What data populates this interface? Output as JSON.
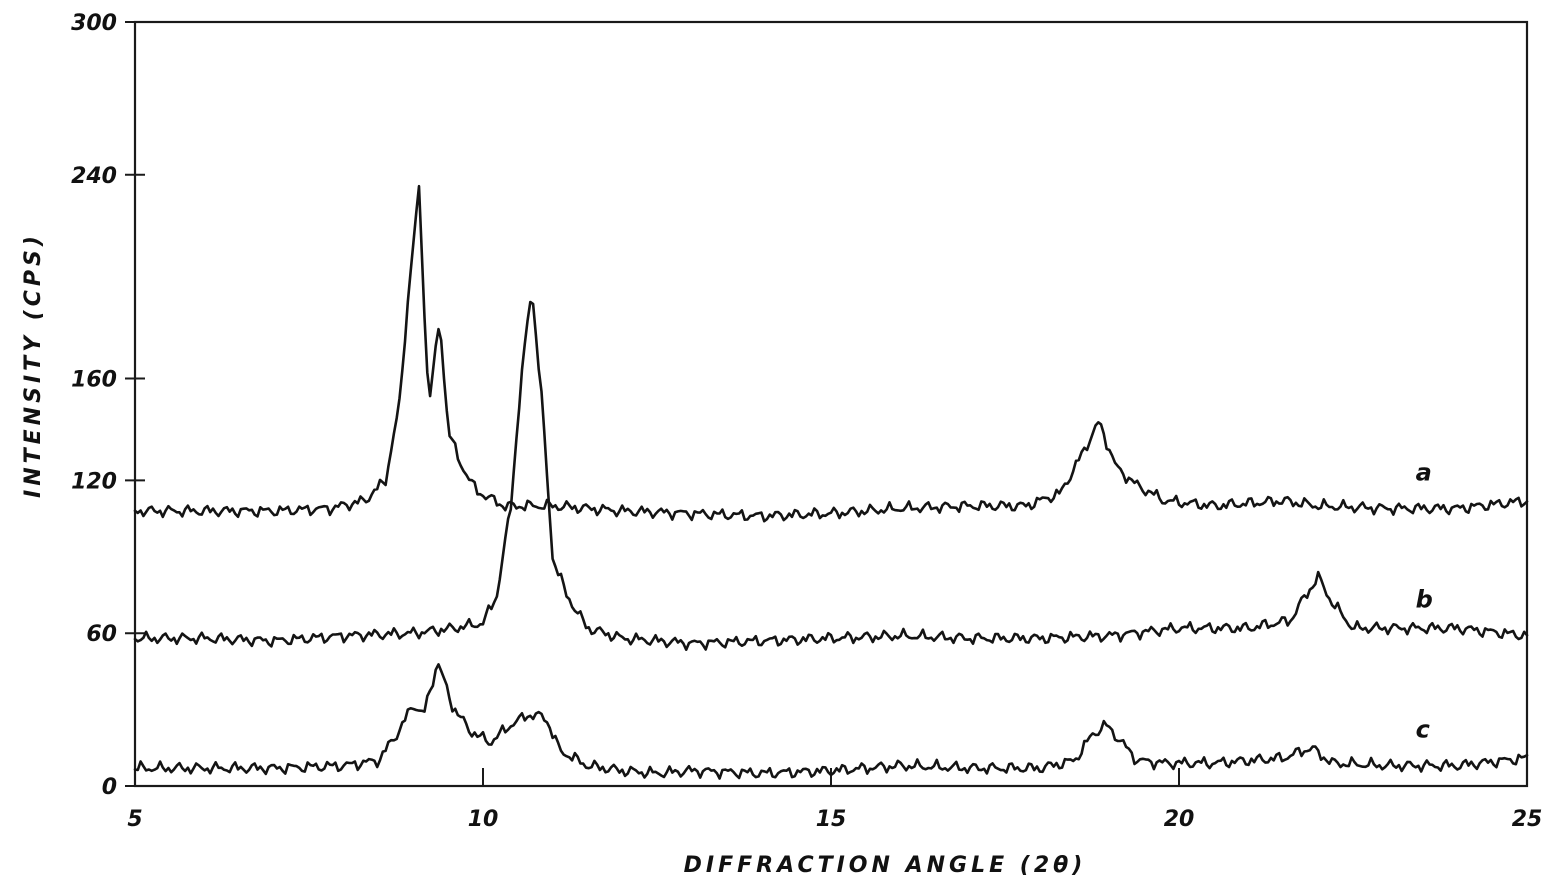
{
  "chart_data": {
    "type": "line",
    "title": "",
    "xlabel": "DIFFRACTION ANGLE (2θ)",
    "ylabel": "INTENSITY (CPS)",
    "xlim": [
      5,
      25
    ],
    "ylim": [
      0,
      300
    ],
    "x_ticks": [
      5,
      10,
      15,
      20,
      25
    ],
    "y_ticks": [
      0,
      60,
      120,
      160,
      240,
      300
    ],
    "grid": false,
    "legend": "none",
    "series": [
      {
        "name": "a",
        "baseline": 108,
        "peaks": [
          {
            "x": 9.08,
            "y": 234
          },
          {
            "x": 9.38,
            "y": 183
          },
          {
            "x": 18.85,
            "y": 143
          }
        ],
        "points": [
          [
            5.0,
            108
          ],
          [
            6.0,
            108
          ],
          [
            7.0,
            108
          ],
          [
            7.8,
            109
          ],
          [
            8.3,
            112
          ],
          [
            8.6,
            120
          ],
          [
            8.8,
            150
          ],
          [
            8.95,
            200
          ],
          [
            9.08,
            234
          ],
          [
            9.22,
            150
          ],
          [
            9.38,
            183
          ],
          [
            9.5,
            140
          ],
          [
            9.65,
            128
          ],
          [
            9.9,
            116
          ],
          [
            10.3,
            110
          ],
          [
            11.0,
            110
          ],
          [
            12.0,
            108
          ],
          [
            13.0,
            107
          ],
          [
            14.0,
            106
          ],
          [
            15.0,
            107
          ],
          [
            16.0,
            109
          ],
          [
            17.0,
            110
          ],
          [
            17.8,
            110
          ],
          [
            18.3,
            115
          ],
          [
            18.6,
            130
          ],
          [
            18.85,
            143
          ],
          [
            19.1,
            125
          ],
          [
            19.4,
            118
          ],
          [
            19.8,
            112
          ],
          [
            20.5,
            110
          ],
          [
            21.5,
            112
          ],
          [
            22.0,
            110
          ],
          [
            23.0,
            109
          ],
          [
            24.0,
            109
          ],
          [
            25.0,
            112
          ]
        ]
      },
      {
        "name": "b",
        "baseline": 58,
        "peaks": [
          {
            "x": 10.7,
            "y": 196
          },
          {
            "x": 22.0,
            "y": 82
          }
        ],
        "points": [
          [
            5.0,
            58
          ],
          [
            6.0,
            58
          ],
          [
            7.0,
            57
          ],
          [
            8.0,
            59
          ],
          [
            9.0,
            60
          ],
          [
            9.6,
            62
          ],
          [
            10.0,
            64
          ],
          [
            10.2,
            75
          ],
          [
            10.4,
            110
          ],
          [
            10.55,
            160
          ],
          [
            10.7,
            196
          ],
          [
            10.85,
            150
          ],
          [
            11.0,
            90
          ],
          [
            11.2,
            75
          ],
          [
            11.5,
            62
          ],
          [
            12.0,
            58
          ],
          [
            13.0,
            56
          ],
          [
            14.0,
            57
          ],
          [
            15.0,
            58
          ],
          [
            16.0,
            59
          ],
          [
            17.0,
            58
          ],
          [
            18.0,
            58
          ],
          [
            19.0,
            59
          ],
          [
            20.0,
            62
          ],
          [
            21.0,
            62
          ],
          [
            21.6,
            65
          ],
          [
            21.8,
            74
          ],
          [
            22.0,
            82
          ],
          [
            22.2,
            72
          ],
          [
            22.5,
            62
          ],
          [
            23.0,
            62
          ],
          [
            24.0,
            62
          ],
          [
            25.0,
            59
          ]
        ]
      },
      {
        "name": "c",
        "baseline": 7,
        "peaks": [
          {
            "x": 9.35,
            "y": 49
          },
          {
            "x": 10.8,
            "y": 28
          },
          {
            "x": 18.95,
            "y": 24
          }
        ],
        "points": [
          [
            5.0,
            7
          ],
          [
            6.0,
            7
          ],
          [
            7.0,
            7
          ],
          [
            8.0,
            8
          ],
          [
            8.5,
            10
          ],
          [
            8.8,
            22
          ],
          [
            9.0,
            32
          ],
          [
            9.15,
            28
          ],
          [
            9.35,
            49
          ],
          [
            9.55,
            32
          ],
          [
            9.8,
            22
          ],
          [
            10.1,
            17
          ],
          [
            10.4,
            24
          ],
          [
            10.65,
            28
          ],
          [
            10.9,
            27
          ],
          [
            11.1,
            14
          ],
          [
            11.5,
            8
          ],
          [
            12.0,
            6
          ],
          [
            12.5,
            5
          ],
          [
            13.0,
            6
          ],
          [
            14.0,
            5
          ],
          [
            15.0,
            6
          ],
          [
            16.0,
            8
          ],
          [
            17.0,
            7
          ],
          [
            18.0,
            7
          ],
          [
            18.5,
            10
          ],
          [
            18.75,
            20
          ],
          [
            18.95,
            24
          ],
          [
            19.15,
            18
          ],
          [
            19.4,
            10
          ],
          [
            19.8,
            9
          ],
          [
            20.5,
            9
          ],
          [
            21.5,
            11
          ],
          [
            21.9,
            15
          ],
          [
            22.2,
            9
          ],
          [
            23.0,
            8
          ],
          [
            24.0,
            8
          ],
          [
            25.0,
            11
          ]
        ]
      }
    ]
  }
}
